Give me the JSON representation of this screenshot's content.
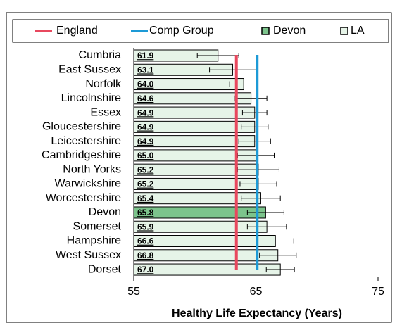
{
  "chart_data": {
    "type": "bar",
    "orientation": "horizontal",
    "categories": [
      "Cumbria",
      "East Sussex",
      "Norfolk",
      "Lincolnshire",
      "Essex",
      "Gloucestershire",
      "Leicestershire",
      "Cambridgeshire",
      "North Yorks",
      "Warwickshire",
      "Worcestershire",
      "Devon",
      "Somerset",
      "Hampshire",
      "West Sussex",
      "Dorset"
    ],
    "values": [
      61.9,
      63.1,
      64.0,
      64.6,
      64.9,
      64.9,
      64.9,
      65.0,
      65.2,
      65.2,
      65.4,
      65.8,
      65.9,
      66.6,
      66.8,
      67.0
    ],
    "value_labels": [
      "61.9",
      "63.1",
      "64.0",
      "64.6",
      "64.9",
      "64.9",
      "64.9",
      "65.0",
      "65.2",
      "65.2",
      "65.4",
      "65.8",
      "65.9",
      "66.6",
      "66.8",
      "67.0"
    ],
    "errors": [
      1.7,
      1.9,
      1.15,
      1.3,
      1.0,
      1.1,
      1.3,
      1.5,
      1.7,
      1.5,
      1.6,
      1.5,
      1.6,
      1.5,
      1.5,
      1.15
    ],
    "bar_series": [
      {
        "name": "Devon",
        "color": "#7cc48c"
      },
      {
        "name": "LA",
        "color": "#e6f4e8"
      }
    ],
    "reference_lines": [
      {
        "name": "England",
        "value": 63.4,
        "color": "#e8485e"
      },
      {
        "name": "Comp Group",
        "value": 65.1,
        "color": "#1d9ad6"
      }
    ],
    "xlim": [
      55,
      75
    ],
    "xticks": [
      55,
      65,
      75
    ],
    "x_label": "Healthy Life Expectancy (Years)"
  }
}
